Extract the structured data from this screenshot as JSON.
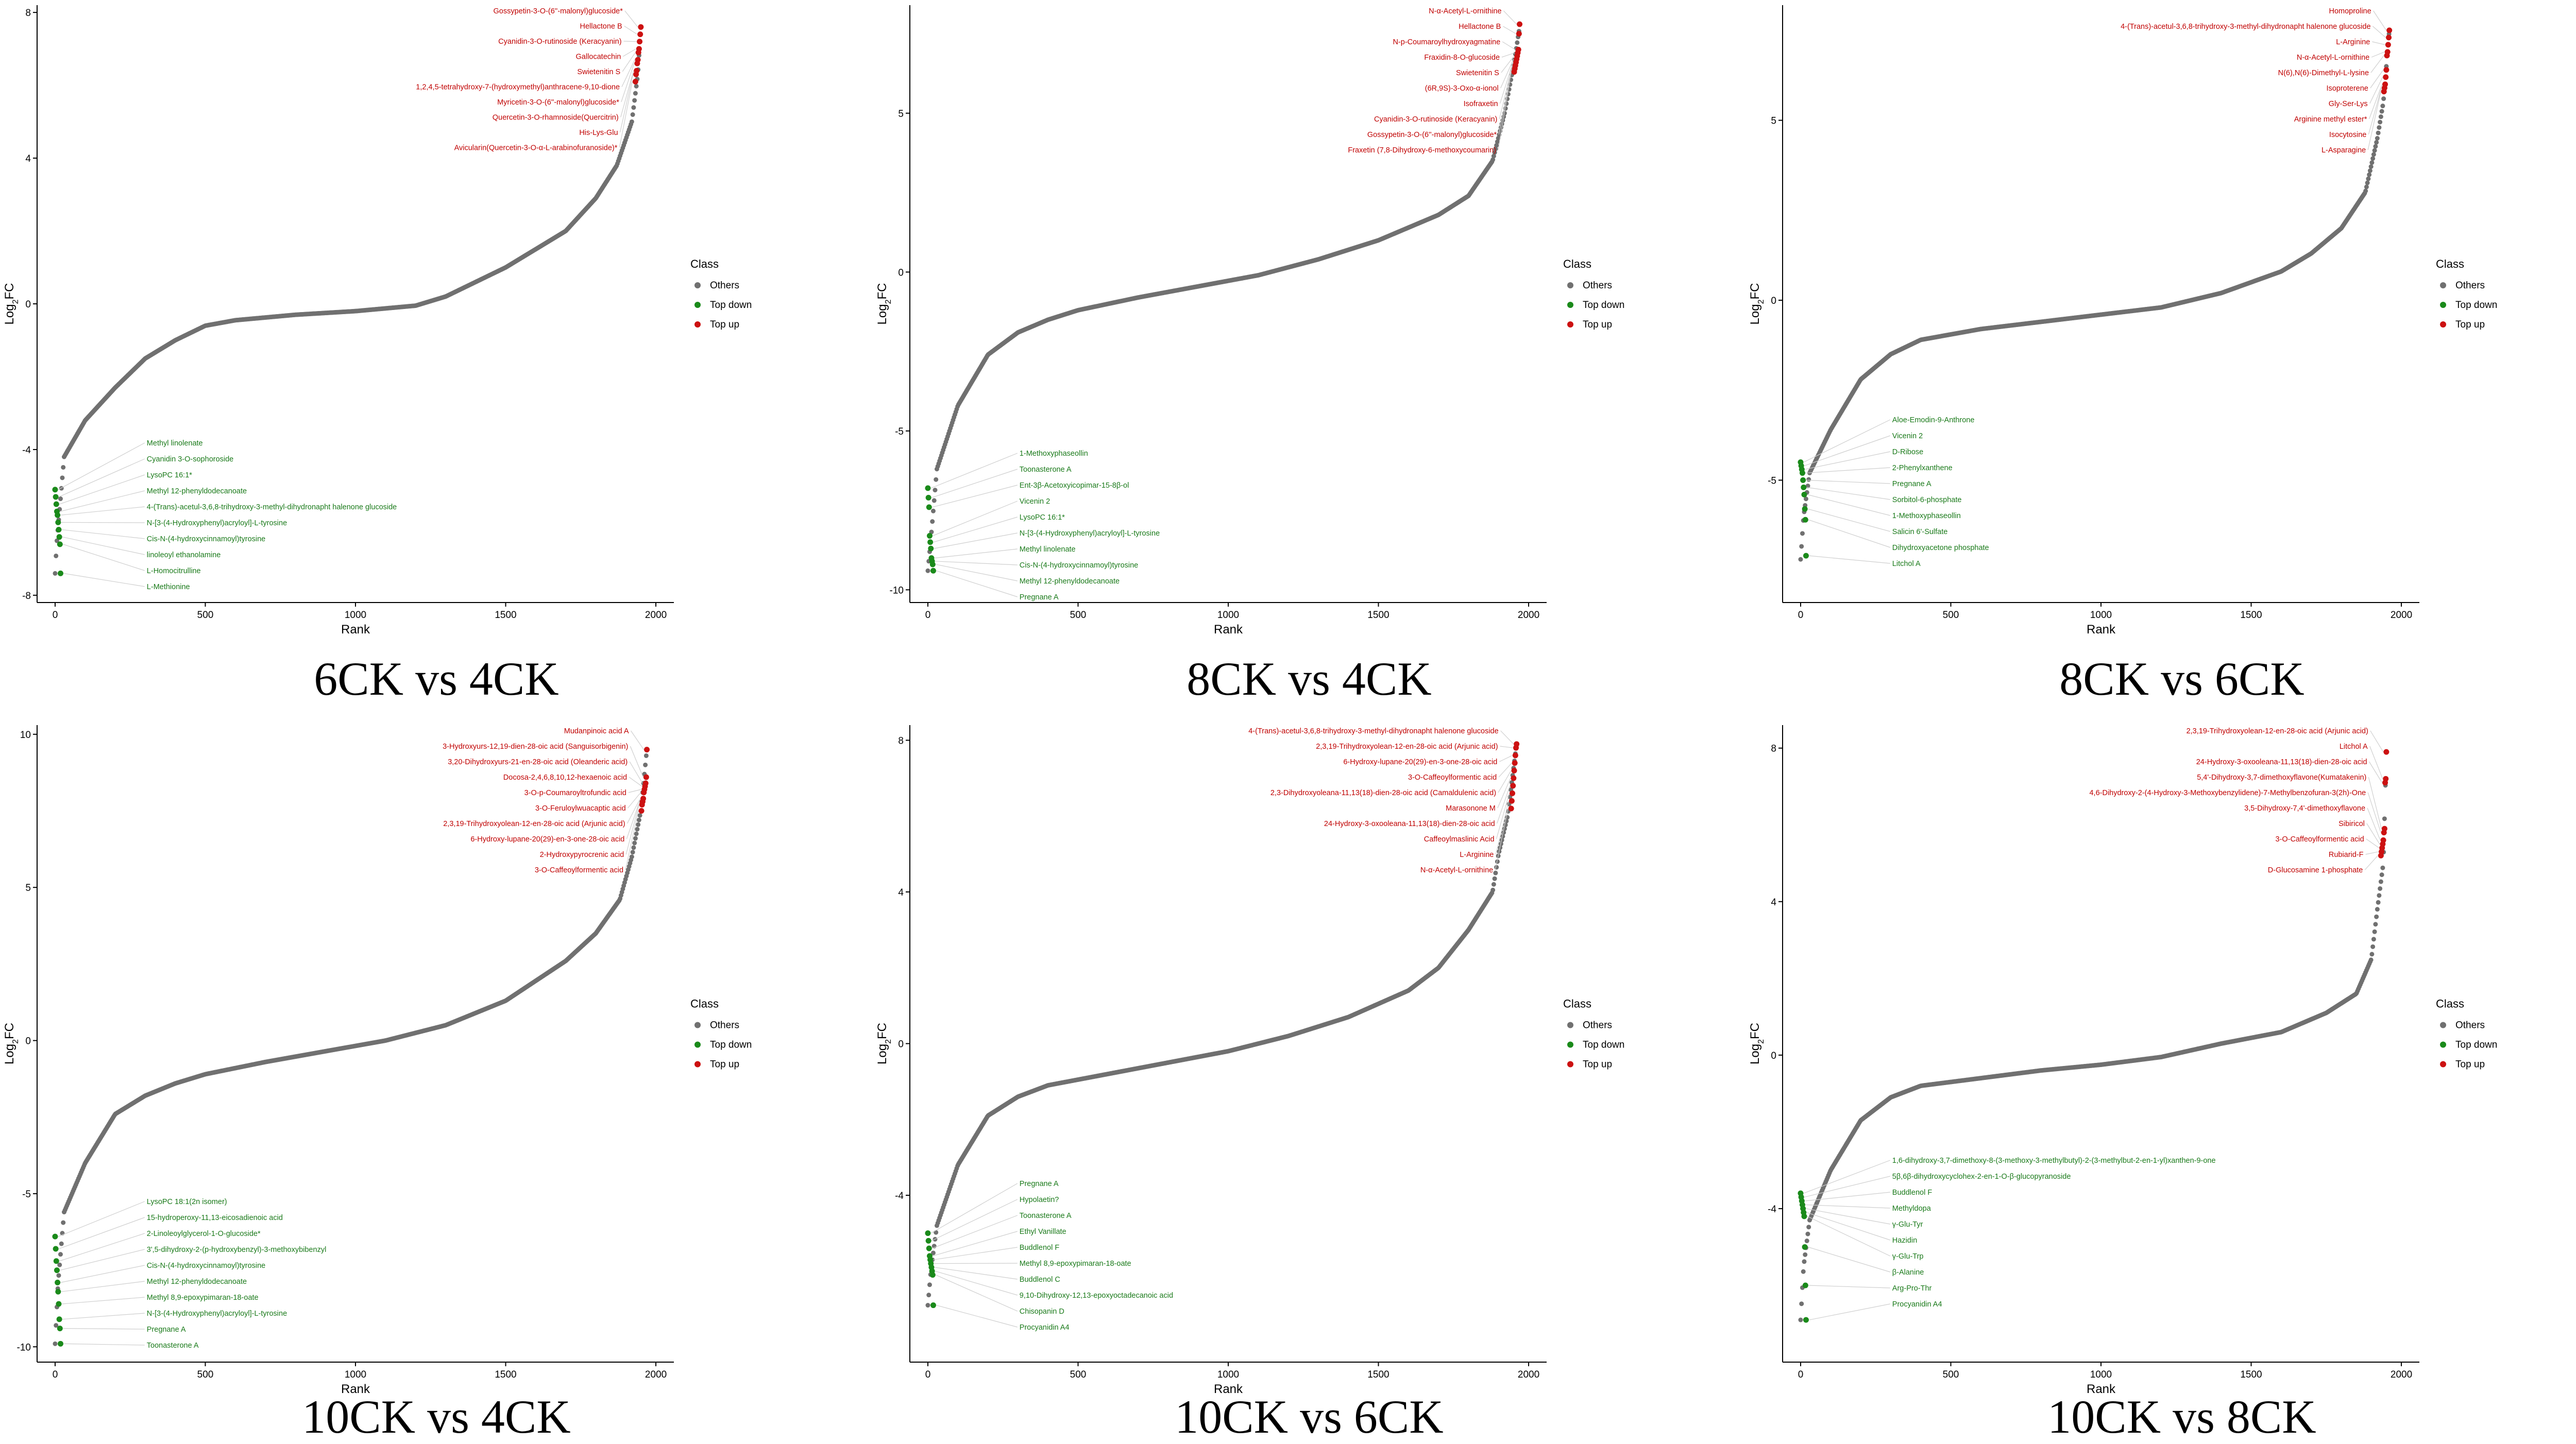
{
  "colors": {
    "others": "#707070",
    "top_down": "#1a8a1a",
    "top_up": "#cc1111"
  },
  "chart_data": [
    {
      "type": "scatter",
      "caption": "6CK vs 4CK",
      "xlabel": "Rank",
      "ylabel": "Log2FC",
      "xlim": [
        -60,
        2060
      ],
      "ylim": [
        -8.2,
        8.2
      ],
      "xticks": [
        0,
        500,
        1000,
        1500,
        2000
      ],
      "yticks": [
        -8,
        -4,
        0,
        4,
        8
      ],
      "n": 1950,
      "curve": [
        [
          0,
          -7.4
        ],
        [
          5,
          -6.6
        ],
        [
          30,
          -4.2
        ],
        [
          100,
          -3.2
        ],
        [
          200,
          -2.3
        ],
        [
          300,
          -1.5
        ],
        [
          400,
          -1.0
        ],
        [
          500,
          -0.6
        ],
        [
          600,
          -0.45
        ],
        [
          800,
          -0.3
        ],
        [
          1000,
          -0.2
        ],
        [
          1200,
          -0.05
        ],
        [
          1300,
          0.2
        ],
        [
          1500,
          1.0
        ],
        [
          1700,
          2.0
        ],
        [
          1800,
          2.9
        ],
        [
          1870,
          3.8
        ],
        [
          1920,
          5.0
        ],
        [
          1940,
          6.3
        ],
        [
          1950,
          7.6
        ]
      ],
      "legend": {
        "title": "Class",
        "items": [
          "Others",
          "Top down",
          "Top up"
        ]
      },
      "top_up": [
        "Gossypetin-3-O-(6''-malonyl)glucoside*",
        "Hellactone B",
        "Cyanidin-3-O-rutinoside (Keracyanin)",
        "Gallocatechin",
        "Swietenitin S",
        "1,2,4,5-tetrahydroxy-7-(hydroxymethyl)anthracene-9,10-dione",
        "Myricetin-3-O-(6''-malonyl)glucoside*",
        "Quercetin-3-O-rhamnoside(Quercitrin)",
        "His-Lys-Glu",
        "Avicularin(Quercetin-3-O-α-L-arabinofuranoside)*"
      ],
      "top_down": [
        "Methyl linolenate",
        "Cyanidin 3-O-sophoroside",
        "LysoPC 16:1*",
        "Methyl 12-phenyldodecanoate",
        "4-(Trans)-acetul-3,6,8-trihydroxy-3-methyl-dihydronapht halenone glucoside",
        "N-[3-(4-Hydroxyphenyl)acryloyl]-L-tyrosine",
        "Cis-N-(4-hydroxycinnamoyl)tyrosine",
        "linoleoyl ethanolamine",
        "L-Homocitrulline",
        "L-Methionine"
      ],
      "up_y": [
        7.6,
        7.4,
        7.2,
        7.0,
        6.9,
        6.7,
        6.6,
        6.4,
        6.3,
        6.1
      ],
      "down_y": [
        -5.1,
        -5.3,
        -5.5,
        -5.7,
        -5.8,
        -6.0,
        -6.2,
        -6.4,
        -6.6,
        -7.4
      ]
    },
    {
      "type": "scatter",
      "caption": "8CK vs 4CK",
      "xlabel": "Rank",
      "ylabel": "Log2FC",
      "xlim": [
        -60,
        2060
      ],
      "ylim": [
        -10.4,
        8.4
      ],
      "xticks": [
        0,
        500,
        1000,
        1500,
        2000
      ],
      "yticks": [
        -10,
        -5,
        0,
        5
      ],
      "n": 1970,
      "curve": [
        [
          0,
          -9.4
        ],
        [
          10,
          -8.4
        ],
        [
          30,
          -6.2
        ],
        [
          100,
          -4.2
        ],
        [
          200,
          -2.6
        ],
        [
          300,
          -1.9
        ],
        [
          400,
          -1.5
        ],
        [
          500,
          -1.2
        ],
        [
          700,
          -0.8
        ],
        [
          900,
          -0.45
        ],
        [
          1100,
          -0.1
        ],
        [
          1300,
          0.4
        ],
        [
          1500,
          1.0
        ],
        [
          1700,
          1.8
        ],
        [
          1800,
          2.4
        ],
        [
          1880,
          3.5
        ],
        [
          1920,
          5.0
        ],
        [
          1950,
          6.5
        ],
        [
          1970,
          7.7
        ]
      ],
      "legend": {
        "title": "Class",
        "items": [
          "Others",
          "Top down",
          "Top up"
        ]
      },
      "top_up": [
        "N-α-Acetyl-L-ornithine",
        "Hellactone B",
        "N-p-Coumaroylhydroxyagmatine",
        "Fraxidin-8-O-glucoside",
        "Swietenitin S",
        "(6R,9S)-3-Oxo-α-ionol",
        "Isofraxetin",
        "Cyanidin-3-O-rutinoside (Keracyanin)",
        "Gossypetin-3-O-(6''-malonyl)glucoside*",
        "Fraxetin (7,8-Dihydroxy-6-methoxycoumarin)"
      ],
      "top_down": [
        "1-Methoxyphaseollin",
        "Toonasterone A",
        "Ent-3β-Acetoxyicopimar-15-8β-ol",
        "Vicenin 2",
        "LysoPC 16:1*",
        "N-[3-(4-Hydroxyphenyl)acryloyl]-L-tyrosine",
        "Methyl linolenate",
        "Cis-N-(4-hydroxycinnamoyl)tyrosine",
        "Methyl 12-phenyldodecanoate",
        "Pregnane A"
      ],
      "up_y": [
        7.8,
        7.5,
        7.0,
        6.9,
        6.8,
        6.7,
        6.6,
        6.5,
        6.4,
        6.3
      ],
      "down_y": [
        -6.8,
        -7.1,
        -7.4,
        -8.3,
        -8.5,
        -8.7,
        -9.0,
        -9.1,
        -9.2,
        -9.4
      ]
    },
    {
      "type": "scatter",
      "caption": "8CK vs 6CK",
      "xlabel": "Rank",
      "ylabel": "Log2FC",
      "xlim": [
        -60,
        2060
      ],
      "ylim": [
        -8.4,
        8.2
      ],
      "xticks": [
        0,
        500,
        1000,
        1500,
        2000
      ],
      "yticks": [
        -5,
        0,
        5
      ],
      "n": 1960,
      "curve": [
        [
          0,
          -7.2
        ],
        [
          10,
          -6.0
        ],
        [
          30,
          -4.8
        ],
        [
          100,
          -3.6
        ],
        [
          200,
          -2.2
        ],
        [
          300,
          -1.5
        ],
        [
          400,
          -1.1
        ],
        [
          600,
          -0.8
        ],
        [
          800,
          -0.6
        ],
        [
          1000,
          -0.4
        ],
        [
          1200,
          -0.2
        ],
        [
          1400,
          0.2
        ],
        [
          1600,
          0.8
        ],
        [
          1700,
          1.3
        ],
        [
          1800,
          2.0
        ],
        [
          1880,
          3.0
        ],
        [
          1920,
          4.5
        ],
        [
          1940,
          5.5
        ],
        [
          1960,
          7.5
        ]
      ],
      "legend": {
        "title": "Class",
        "items": [
          "Others",
          "Top down",
          "Top up"
        ]
      },
      "top_up": [
        "Homoproline",
        "4-(Trans)-acetul-3,6,8-trihydroxy-3-methyl-dihydronapht halenone glucoside",
        "L-Arginine",
        "N-α-Acetyl-L-ornithine",
        "N(6),N(6)-Dimethyl-L-lysine",
        "Isoproterene",
        "Gly-Ser-Lys",
        "Arginine methyl ester*",
        "Isocytosine",
        "L-Asparagine"
      ],
      "top_down": [
        "Aloe-Emodin-9-Anthrone",
        "Vicenin 2",
        "D-Ribose",
        "2-Phenylxanthene",
        "Pregnane A",
        "Sorbitol-6-phosphate",
        "1-Methoxyphaseollin",
        "Salicin 6'-Sulfate",
        "Dihydroxyacetone phosphate",
        "Litchol A"
      ],
      "up_y": [
        7.5,
        7.3,
        7.1,
        6.9,
        6.8,
        6.4,
        6.2,
        6.0,
        5.9,
        5.8
      ],
      "down_y": [
        -4.5,
        -4.6,
        -4.7,
        -4.8,
        -5.0,
        -5.2,
        -5.4,
        -5.8,
        -6.1,
        -7.1
      ]
    },
    {
      "type": "scatter",
      "caption": "10CK vs 4CK",
      "xlabel": "Rank",
      "ylabel": "Log2FC",
      "xlim": [
        -60,
        2060
      ],
      "ylim": [
        -10.5,
        10.3
      ],
      "xticks": [
        0,
        500,
        1000,
        1500,
        2000
      ],
      "yticks": [
        -10,
        -5,
        0,
        5,
        10
      ],
      "n": 1970,
      "curve": [
        [
          0,
          -9.9
        ],
        [
          10,
          -7.9
        ],
        [
          30,
          -5.6
        ],
        [
          100,
          -4.0
        ],
        [
          200,
          -2.4
        ],
        [
          300,
          -1.8
        ],
        [
          400,
          -1.4
        ],
        [
          500,
          -1.1
        ],
        [
          700,
          -0.7
        ],
        [
          900,
          -0.35
        ],
        [
          1100,
          0.0
        ],
        [
          1300,
          0.5
        ],
        [
          1500,
          1.3
        ],
        [
          1700,
          2.6
        ],
        [
          1800,
          3.5
        ],
        [
          1880,
          4.6
        ],
        [
          1920,
          6.0
        ],
        [
          1950,
          7.5
        ],
        [
          1970,
          9.5
        ]
      ],
      "legend": {
        "title": "Class",
        "items": [
          "Others",
          "Top down",
          "Top up"
        ]
      },
      "top_up": [
        "Mudanpinoic acid A",
        "3-Hydroxyurs-12,19-dien-28-oic acid (Sanguisorbigenin)",
        "3,20-Dihydroxyurs-21-en-28-oic acid (Oleanderic acid)",
        "Docosa-2,4,6,8,10,12-hexaenoic acid",
        "3-O-p-Coumaroyltrofundic acid",
        "3-O-Feruloylwuacaptic acid",
        "2,3,19-Trihydroxyolean-12-en-28-oic acid (Arjunic acid)",
        "6-Hydroxy-lupane-20(29)-en-3-one-28-oic acid",
        "2-Hydroxypyrocrenic acid",
        "3-O-Caffeoylformentic acid"
      ],
      "top_down": [
        "LysoPC 18:1(2n isomer)",
        "15-hydroperoxy-11,13-eicosadienoic acid",
        "2-Linoleoylglycerol-1-O-glucoside*",
        "3',5-dihydroxy-2-(p-hydroxybenzyl)-3-methoxybibenzyl",
        "Cis-N-(4-hydroxycinnamoyl)tyrosine",
        "Methyl 12-phenyldodecanoate",
        "Methyl 8,9-epoxypimaran-18-oate",
        "N-[3-(4-Hydroxyphenyl)acryloyl]-L-tyrosine",
        "Pregnane A",
        "Toonasterone A"
      ],
      "up_y": [
        9.5,
        8.6,
        8.4,
        8.3,
        8.2,
        8.1,
        7.9,
        7.8,
        7.7,
        7.5
      ],
      "down_y": [
        -6.4,
        -6.8,
        -7.2,
        -7.5,
        -7.9,
        -8.2,
        -8.6,
        -9.1,
        -9.4,
        -9.9
      ]
    },
    {
      "type": "scatter",
      "caption": "10CK vs 6CK",
      "xlabel": "Rank",
      "ylabel": "Log2FC",
      "xlim": [
        -60,
        2060
      ],
      "ylim": [
        -8.4,
        8.4
      ],
      "xticks": [
        0,
        500,
        1000,
        1500,
        2000
      ],
      "yticks": [
        -4,
        0,
        4,
        8
      ],
      "n": 1960,
      "curve": [
        [
          0,
          -6.9
        ],
        [
          10,
          -6.0
        ],
        [
          30,
          -4.8
        ],
        [
          100,
          -3.2
        ],
        [
          200,
          -1.9
        ],
        [
          300,
          -1.4
        ],
        [
          400,
          -1.1
        ],
        [
          600,
          -0.8
        ],
        [
          800,
          -0.5
        ],
        [
          1000,
          -0.2
        ],
        [
          1200,
          0.2
        ],
        [
          1400,
          0.7
        ],
        [
          1600,
          1.4
        ],
        [
          1700,
          2.0
        ],
        [
          1800,
          3.0
        ],
        [
          1880,
          4.0
        ],
        [
          1900,
          5.0
        ],
        [
          1930,
          6.0
        ],
        [
          1960,
          7.9
        ]
      ],
      "legend": {
        "title": "Class",
        "items": [
          "Others",
          "Top down",
          "Top up"
        ]
      },
      "top_up": [
        "4-(Trans)-acetul-3,6,8-trihydroxy-3-methyl-dihydronapht halenone glucoside",
        "2,3,19-Trihydroxyolean-12-en-28-oic acid (Arjunic acid)",
        "6-Hydroxy-lupane-20(29)-en-3-one-28-oic acid",
        "3-O-Caffeoylformentic acid",
        "2,3-Dihydroxyoleana-11,13(18)-dien-28-oic acid (Camaldulenic acid)",
        "Marasonone M",
        "24-Hydroxy-3-oxooleana-11,13(18)-dien-28-oic acid",
        "Caffeoylmaslinic Acid",
        "L-Arginine",
        "N-α-Acetyl-L-ornithine"
      ],
      "top_down": [
        "Pregnane A",
        "Hypolaetin?",
        "Toonasterone A",
        "Ethyl Vanillate",
        "Buddlenol F",
        "Methyl 8,9-epoxypimaran-18-oate",
        "Buddlenol C",
        "9,10-Dihydroxy-12,13-epoxyoctadecanoic acid",
        "Chisopanin D",
        "Procyanidin A4"
      ],
      "up_y": [
        7.9,
        7.8,
        7.6,
        7.4,
        7.2,
        7.0,
        6.8,
        6.6,
        6.4,
        6.2
      ],
      "down_y": [
        -5.0,
        -5.2,
        -5.4,
        -5.6,
        -5.7,
        -5.8,
        -5.9,
        -6.0,
        -6.1,
        -6.9
      ]
    },
    {
      "type": "scatter",
      "caption": "10CK vs 8CK",
      "xlabel": "Rank",
      "ylabel": "Log2FC",
      "xlim": [
        -60,
        2060
      ],
      "ylim": [
        -8.0,
        8.6
      ],
      "xticks": [
        0,
        500,
        1000,
        1500,
        2000
      ],
      "yticks": [
        -4,
        0,
        4,
        8
      ],
      "n": 1950,
      "curve": [
        [
          0,
          -6.9
        ],
        [
          10,
          -5.5
        ],
        [
          30,
          -4.3
        ],
        [
          100,
          -3.0
        ],
        [
          200,
          -1.7
        ],
        [
          300,
          -1.1
        ],
        [
          400,
          -0.8
        ],
        [
          600,
          -0.6
        ],
        [
          800,
          -0.4
        ],
        [
          1000,
          -0.25
        ],
        [
          1200,
          -0.05
        ],
        [
          1400,
          0.3
        ],
        [
          1600,
          0.6
        ],
        [
          1750,
          1.1
        ],
        [
          1850,
          1.6
        ],
        [
          1900,
          2.5
        ],
        [
          1920,
          3.8
        ],
        [
          1940,
          5.0
        ],
        [
          1950,
          7.9
        ]
      ],
      "legend": {
        "title": "Class",
        "items": [
          "Others",
          "Top down",
          "Top up"
        ]
      },
      "top_up": [
        "2,3,19-Trihydroxyolean-12-en-28-oic acid (Arjunic acid)",
        "Litchol A",
        "24-Hydroxy-3-oxooleana-11,13(18)-dien-28-oic acid",
        "5,4'-Dihydroxy-3,7-dimethoxyflavone(Kumatakenin)",
        "4,6-Dihydroxy-2-(4-Hydroxy-3-Methoxybenzylidene)-7-Methylbenzofuran-3(2h)-One",
        "3,5-Dihydroxy-7,4'-dimethoxyflavone",
        "Sibiricol",
        "3-O-Caffeoylformentic acid",
        "Rubiarid-F",
        "D-Glucosamine 1-phosphate"
      ],
      "top_down": [
        "1,6-dihydroxy-3,7-dimethoxy-8-(3-methoxy-3-methylbutyl)-2-(3-methylbut-2-en-1-yl)xanthen-9-one",
        "5β,6β-dihydroxycyclohex-2-en-1-O-β-glucopyranoside",
        "Buddlenol F",
        "Methyldopa",
        "γ-Glu-Tyr",
        "Hazidin",
        "γ-Glu-Trp",
        "β-Alanine",
        "Arg-Pro-Thr",
        "Procyanidin A4"
      ],
      "up_y": [
        7.9,
        7.2,
        7.1,
        5.9,
        5.8,
        5.6,
        5.5,
        5.4,
        5.3,
        5.2
      ],
      "down_y": [
        -3.6,
        -3.7,
        -3.8,
        -3.9,
        -4.0,
        -4.1,
        -4.2,
        -5.0,
        -6.0,
        -6.9
      ]
    }
  ]
}
